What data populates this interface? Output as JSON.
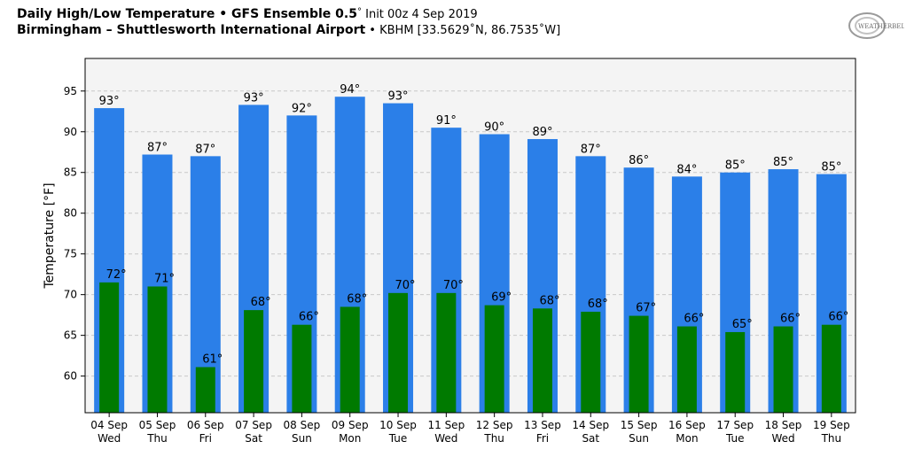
{
  "header": {
    "line1_bold": "Daily High/Low Temperature • GFS Ensemble 0.5",
    "line1_deg": "°",
    "line1_light": " Init 00z 4 Sep 2019",
    "line2_bold": "Birmingham – Shuttlesworth International Airport",
    "line2_light": " • KBHM [33.5629˚N, 86.7535˚W]"
  },
  "logo_text": "WEATHERBELL",
  "colors": {
    "high": "#2b7fe8",
    "low": "#007a00",
    "plot_bg": "#f4f4f4"
  },
  "chart_data": {
    "type": "bar",
    "ylabel": "Temperature [°F]",
    "ylim": [
      55.5,
      99
    ],
    "yticks": [
      60,
      65,
      70,
      75,
      80,
      85,
      90,
      95
    ],
    "grid": true,
    "categories": [
      [
        "04 Sep",
        "Wed"
      ],
      [
        "05 Sep",
        "Thu"
      ],
      [
        "06 Sep",
        "Fri"
      ],
      [
        "07 Sep",
        "Sat"
      ],
      [
        "08 Sep",
        "Sun"
      ],
      [
        "09 Sep",
        "Mon"
      ],
      [
        "10 Sep",
        "Tue"
      ],
      [
        "11 Sep",
        "Wed"
      ],
      [
        "12 Sep",
        "Thu"
      ],
      [
        "13 Sep",
        "Fri"
      ],
      [
        "14 Sep",
        "Sat"
      ],
      [
        "15 Sep",
        "Sun"
      ],
      [
        "16 Sep",
        "Mon"
      ],
      [
        "17 Sep",
        "Tue"
      ],
      [
        "18 Sep",
        "Wed"
      ],
      [
        "19 Sep",
        "Thu"
      ]
    ],
    "series": [
      {
        "values": [
          92.9,
          87.2,
          87.0,
          93.3,
          92.0,
          94.3,
          93.5,
          90.5,
          89.7,
          89.1,
          87.0,
          85.6,
          84.5,
          85.0,
          85.4,
          84.8
        ],
        "labels": [
          "93°",
          "87°",
          "87°",
          "93°",
          "92°",
          "94°",
          "93°",
          "91°",
          "90°",
          "89°",
          "87°",
          "86°",
          "84°",
          "85°",
          "85°",
          "85°"
        ]
      },
      {
        "values": [
          71.5,
          71.0,
          61.1,
          68.1,
          66.3,
          68.5,
          70.2,
          70.2,
          68.7,
          68.3,
          67.9,
          67.4,
          66.1,
          65.4,
          66.1,
          66.3
        ],
        "labels": [
          "72°",
          "71°",
          "61°",
          "68°",
          "66°",
          "68°",
          "70°",
          "70°",
          "69°",
          "68°",
          "68°",
          "67°",
          "66°",
          "65°",
          "66°",
          "66°"
        ]
      }
    ]
  }
}
